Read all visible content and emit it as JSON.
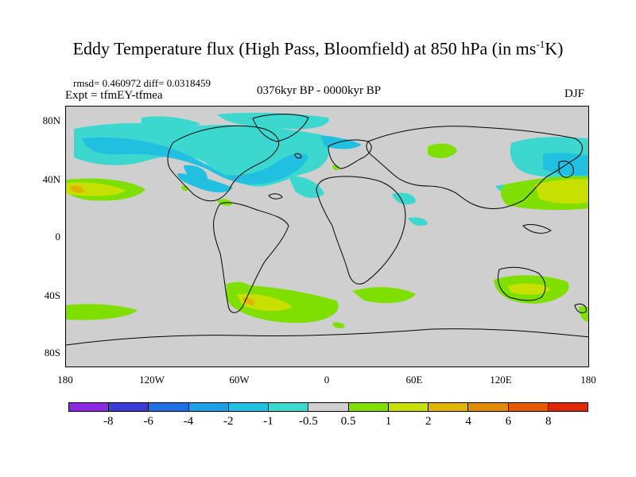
{
  "title": {
    "main": "Eddy Temperature flux (High Pass, Bloomfield) at 850 hPa (in ms",
    "sup": "-1",
    "tail": "K)"
  },
  "stats": "rmsd= 0.460972 diff= 0.0318459",
  "experiment": "Expt = tfmEY-tfmea",
  "period": "0376kyr BP - 0000kyr BP",
  "season": "DJF",
  "y_axis": [
    "80N",
    "40N",
    "0",
    "40S",
    "80S"
  ],
  "x_axis": [
    "180",
    "120W",
    "60W",
    "0",
    "60E",
    "120E",
    "180"
  ],
  "colorbar": {
    "colors": [
      "#8a2be2",
      "#3b3bd9",
      "#1e6fe6",
      "#1f9ee8",
      "#22c0e0",
      "#3cd8d0",
      "#cfcfcf",
      "#7fe000",
      "#c8e000",
      "#e0b400",
      "#e08a00",
      "#e05a00",
      "#e02800"
    ],
    "labels": [
      "-8",
      "-6",
      "-4",
      "-2",
      "-1",
      "-0.5",
      "0.5",
      "1",
      "2",
      "4",
      "6",
      "8"
    ]
  },
  "colors": {
    "land_background": "#cfcfcf",
    "coastline": "#000000"
  }
}
